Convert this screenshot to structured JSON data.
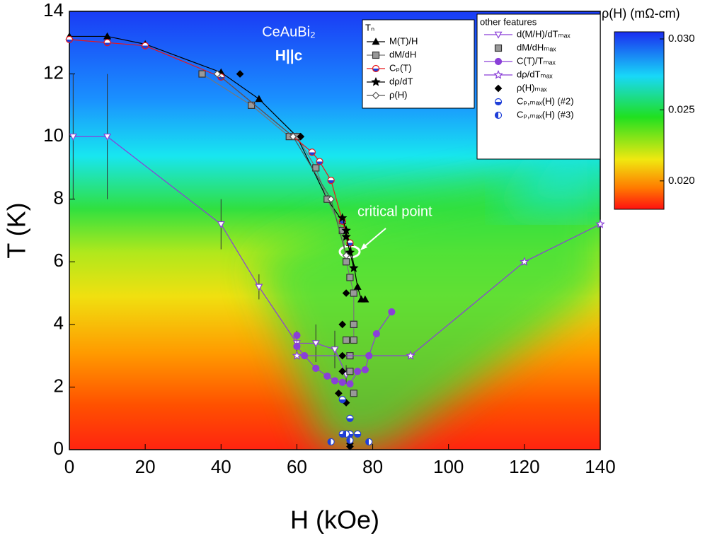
{
  "chart_data": {
    "type": "scatter",
    "xlabel": "H (kOe)",
    "ylabel": "T (K)",
    "xlim": [
      0,
      140
    ],
    "xticks": [
      0,
      20,
      40,
      60,
      80,
      100,
      120,
      140
    ],
    "ylim": [
      0,
      14
    ],
    "yticks": [
      0,
      2,
      4,
      6,
      8,
      10,
      12,
      14
    ],
    "annotations": [
      "CeAuBi₂",
      "H||c",
      "critical point"
    ],
    "legend_titles": [
      "Tₙ",
      "other features"
    ],
    "colorbar": {
      "title": "ρ(H) (mΩ-cm)",
      "lim": [
        0.018,
        0.0305
      ],
      "ticks": [
        {
          "value": 0.03,
          "label": "0.030"
        },
        0.025,
        {
          "value": 0.02,
          "label": "0.020"
        }
      ]
    },
    "series": [
      {
        "name": "M(T)/H",
        "legend": 0,
        "marker": "triangle",
        "color": "#000000",
        "line": true,
        "x": [
          0,
          10,
          20,
          40,
          50,
          60,
          68,
          72,
          74,
          76,
          77,
          78
        ],
        "values": [
          13.2,
          13.2,
          12.95,
          12.05,
          11.2,
          10,
          8,
          7.3,
          6.6,
          5.2,
          4.8,
          4.8
        ]
      },
      {
        "name": "dM/dH",
        "legend": 0,
        "marker": "square",
        "color": "#777777",
        "line": true,
        "x": [
          35,
          48,
          58,
          60,
          65,
          68,
          72,
          73,
          74,
          75,
          75,
          75
        ],
        "values": [
          12,
          11,
          10,
          10,
          9,
          8,
          7,
          6,
          5.5,
          5,
          4,
          3.5
        ]
      },
      {
        "name": "Cₚ(T)",
        "legend": 0,
        "marker": "circle",
        "color": "#e8161b",
        "line": true,
        "x": [
          0,
          10,
          20,
          40,
          64,
          66,
          69,
          72,
          74
        ],
        "values": [
          13.1,
          13,
          12.9,
          11.9,
          9.5,
          9.2,
          8.6,
          7.3,
          6.6
        ]
      },
      {
        "name": "dρ/dT",
        "legend": 0,
        "marker": "star",
        "color": "#000000",
        "line": true,
        "x": [
          72,
          73,
          73,
          74,
          75
        ],
        "values": [
          7.4,
          7,
          6.8,
          6.3,
          5.8
        ]
      },
      {
        "name": "ρ(H)",
        "legend": 0,
        "marker": "diamond",
        "color": "#555555",
        "line": true,
        "x": [
          39,
          59,
          69,
          73
        ],
        "values": [
          12,
          10,
          8,
          6.2
        ]
      },
      {
        "name": "d(M/H)/dTₘₐₓ",
        "legend": 1,
        "marker": "triangle-down",
        "color": "#8a3fd8",
        "line": true,
        "x": [
          1,
          10,
          40,
          50,
          60,
          65,
          70,
          73
        ],
        "values": [
          10,
          10,
          7.2,
          5.2,
          3.4,
          3.4,
          3.2,
          2.4
        ],
        "errors": [
          2,
          2,
          0.8,
          0.4,
          0.4,
          0.6,
          0.6,
          0.3
        ]
      },
      {
        "name": "dM/dHₘₐₓ",
        "legend": 1,
        "marker": "square",
        "color": "#333333",
        "line": false,
        "x": [
          73,
          74,
          74,
          75,
          75
        ],
        "values": [
          3.5,
          3,
          2.5,
          1.8,
          4
        ]
      },
      {
        "name": "C(T)/Tₘₐₓ",
        "legend": 1,
        "marker": "circle-filled",
        "color": "#8a3fd8",
        "line": true,
        "x": [
          60,
          60,
          62,
          65,
          68,
          70,
          72,
          74,
          76,
          78,
          79,
          81,
          85
        ],
        "values": [
          3.65,
          3.3,
          3,
          2.6,
          2.35,
          2.2,
          2.15,
          2.1,
          2.5,
          2.55,
          3,
          3.7,
          4.4
        ]
      },
      {
        "name": "dρ/dTₘₐₓ",
        "legend": 1,
        "marker": "star-open",
        "color": "#8a3fd8",
        "line": true,
        "x": [
          60,
          90,
          120,
          140
        ],
        "values": [
          3,
          3,
          6,
          7.2
        ]
      },
      {
        "name": "ρ(H)ₘₐₓ",
        "legend": 1,
        "marker": "diamond-filled",
        "color": "#000000",
        "line": false,
        "x": [
          45,
          61,
          73,
          72,
          72,
          72,
          71,
          73,
          74,
          74,
          74
        ],
        "values": [
          12,
          10,
          5,
          4,
          3,
          2.5,
          1.8,
          1.5,
          0.5,
          0.2,
          0.1
        ]
      },
      {
        "name": "Cₚ,ₘₐₓ(H) (#2)",
        "legend": 1,
        "marker": "half-v",
        "color": "#1f3fd8",
        "line": false,
        "x": [
          72,
          74,
          72,
          74,
          76
        ],
        "values": [
          1.6,
          1,
          0.5,
          0.5,
          0.5
        ]
      },
      {
        "name": "Cₚ,ₘₐₓ(H) (#3)",
        "legend": 1,
        "marker": "half-h",
        "color": "#1f3fd8",
        "line": false,
        "x": [
          69,
          79,
          73,
          74
        ],
        "values": [
          0.25,
          0.25,
          0.5,
          0.3
        ]
      }
    ]
  }
}
